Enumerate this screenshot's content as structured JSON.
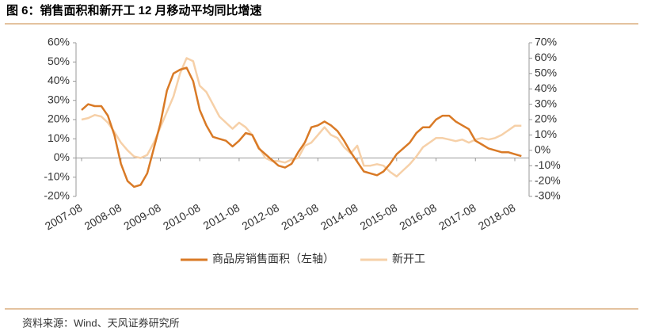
{
  "chart_data": {
    "type": "line",
    "title": "图 6：销售面积和新开工 12 月移动平均同比增速",
    "source": "资料来源：Wind、天风证券研究所",
    "categories": [
      "2007-08",
      null,
      null,
      null,
      null,
      null,
      "2008-08",
      null,
      null,
      null,
      null,
      null,
      "2009-08",
      null,
      null,
      null,
      null,
      null,
      "2010-08",
      null,
      null,
      null,
      null,
      null,
      "2011-08",
      null,
      null,
      null,
      null,
      null,
      "2012-08",
      null,
      null,
      null,
      null,
      null,
      "2013-08",
      null,
      null,
      null,
      null,
      null,
      "2014-08",
      null,
      null,
      null,
      null,
      null,
      "2015-08",
      null,
      null,
      null,
      null,
      null,
      "2016-08",
      null,
      null,
      null,
      null,
      null,
      "2017-08",
      null,
      null,
      null,
      null,
      null,
      "2018-08",
      null
    ],
    "series": [
      {
        "name": "商品房销售面积（左轴）",
        "color": "#d97a26",
        "axis": "y",
        "values": [
          25,
          28,
          27,
          27,
          22,
          12,
          -3,
          -12,
          -15,
          -14,
          -8,
          5,
          18,
          35,
          44,
          46,
          47,
          40,
          25,
          17,
          11,
          10,
          9,
          6,
          9,
          13,
          12,
          5,
          2,
          -1,
          -4,
          -5,
          -3,
          3,
          8,
          16,
          17,
          19,
          17,
          14,
          9,
          3,
          -2,
          -7,
          -8,
          -9,
          -7,
          -3,
          2,
          5,
          8,
          13,
          16,
          16,
          20,
          22,
          22,
          19,
          17,
          15,
          9,
          7,
          5,
          4,
          3,
          3,
          2,
          1
        ]
      },
      {
        "name": "新开工",
        "color": "#f6d0a8",
        "axis": "y2",
        "values": [
          20,
          21,
          23,
          22,
          18,
          12,
          5,
          0,
          -4,
          -5,
          -3,
          5,
          15,
          25,
          35,
          50,
          60,
          58,
          42,
          38,
          30,
          22,
          18,
          14,
          18,
          15,
          10,
          2,
          -5,
          -7,
          -7,
          -8,
          -6,
          -5,
          3,
          5,
          10,
          15,
          10,
          8,
          2,
          -2,
          3,
          -10,
          -10,
          -9,
          -10,
          -14,
          -17,
          -13,
          -9,
          -4,
          2,
          5,
          8,
          8,
          7,
          6,
          7,
          5,
          7,
          8,
          7,
          8,
          10,
          13,
          16,
          16
        ]
      }
    ],
    "ylim": [
      -20,
      60
    ],
    "yticks": [
      {
        "value": -20,
        "label": "-20%"
      },
      {
        "value": -10,
        "label": "-10%"
      },
      {
        "value": 0,
        "label": "0%"
      },
      {
        "value": 10,
        "label": "10%"
      },
      {
        "value": 20,
        "label": "20%"
      },
      {
        "value": 30,
        "label": "30%"
      },
      {
        "value": 40,
        "label": "40%"
      },
      {
        "value": 50,
        "label": "50%"
      },
      {
        "value": 60,
        "label": "60%"
      }
    ],
    "y2lim": [
      -30,
      70
    ],
    "y2ticks": [
      {
        "value": -30,
        "label": "-30%"
      },
      {
        "value": -20,
        "label": "-20%"
      },
      {
        "value": -10,
        "label": "-10%"
      },
      {
        "value": 0,
        "label": "0%"
      },
      {
        "value": 10,
        "label": "10%"
      },
      {
        "value": 20,
        "label": "20%"
      },
      {
        "value": 30,
        "label": "30%"
      },
      {
        "value": 40,
        "label": "40%"
      },
      {
        "value": 50,
        "label": "50%"
      },
      {
        "value": 60,
        "label": "60%"
      },
      {
        "value": 70,
        "label": "70%"
      }
    ]
  }
}
